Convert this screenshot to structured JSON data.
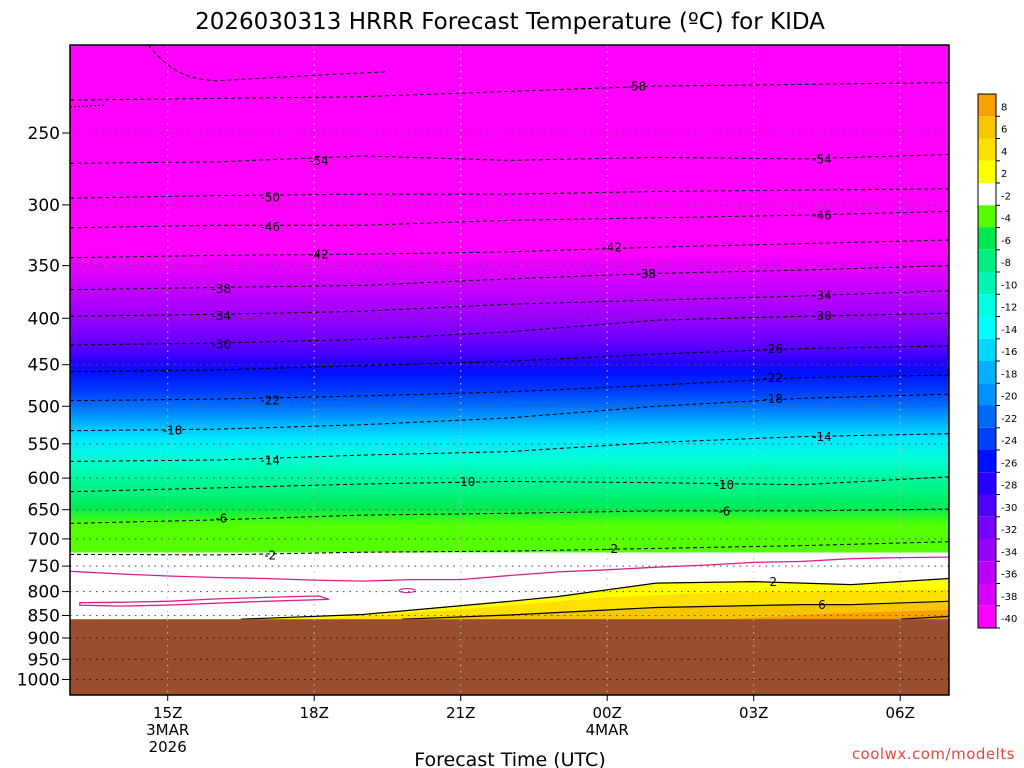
{
  "chart_data": {
    "type": "heatmap",
    "title": "2026030313 HRRR Forecast Temperature (ºC) for KIDA",
    "xlabel": "Forecast Time (UTC)",
    "ylabel": "",
    "x_ticks": [
      {
        "time": "2026-03-03 15Z",
        "lines": [
          "15Z",
          "3MAR",
          "2026"
        ]
      },
      {
        "time": "2026-03-03 18Z",
        "lines": [
          "18Z"
        ]
      },
      {
        "time": "2026-03-03 21Z",
        "lines": [
          "21Z"
        ]
      },
      {
        "time": "2026-03-04 00Z",
        "lines": [
          "00Z",
          "4MAR"
        ]
      },
      {
        "time": "2026-03-04 03Z",
        "lines": [
          "03Z"
        ]
      },
      {
        "time": "2026-03-04 06Z",
        "lines": [
          "06Z"
        ]
      }
    ],
    "x_range_hours_after_13Z": [
      0,
      18
    ],
    "y_scale": "log",
    "y_ticks": [
      250,
      300,
      350,
      400,
      450,
      500,
      550,
      600,
      650,
      700,
      750,
      800,
      850,
      900,
      950,
      1000
    ],
    "ylim": [
      1040,
      200
    ],
    "ground_pressure_hpa": 858,
    "grid": true,
    "colorbar": {
      "placement": "right",
      "labels": [
        "8",
        "6",
        "4",
        "2",
        "-2",
        "-4",
        "-6",
        "-8",
        "-10",
        "-12",
        "-14",
        "-16",
        "-18",
        "-20",
        "-22",
        "-24",
        "-26",
        "-28",
        "-30",
        "-32",
        "-34",
        "-36",
        "-38",
        "-40"
      ],
      "colors": [
        "#f7a000",
        "#f7c600",
        "#ffe000",
        "#ffff00",
        "#ffffff",
        "#55ff00",
        "#00e850",
        "#00f080",
        "#00f5b5",
        "#00ffe0",
        "#00ffff",
        "#00d8ff",
        "#00b0ff",
        "#0090ff",
        "#0068ff",
        "#0040ff",
        "#0010ff",
        "#2800ff",
        "#5000ff",
        "#7800ff",
        "#9800ff",
        "#b800ff",
        "#d800ff",
        "#ff00ff"
      ]
    },
    "contour_labels": [
      {
        "text": "-58",
        "t": 11.6,
        "p": 222
      },
      {
        "text": "-54",
        "t": 5.1,
        "p": 268
      },
      {
        "text": "-54",
        "t": 15.4,
        "p": 267
      },
      {
        "text": "-50",
        "t": 4.1,
        "p": 294
      },
      {
        "text": "-46",
        "t": 4.1,
        "p": 317
      },
      {
        "text": "-46",
        "t": 15.4,
        "p": 308
      },
      {
        "text": "-42",
        "t": 5.1,
        "p": 340
      },
      {
        "text": "-42",
        "t": 11.1,
        "p": 334
      },
      {
        "text": "-38",
        "t": 3.1,
        "p": 371
      },
      {
        "text": "-38",
        "t": 11.8,
        "p": 357
      },
      {
        "text": "-34",
        "t": 3.1,
        "p": 397
      },
      {
        "text": "-34",
        "t": 15.4,
        "p": 377
      },
      {
        "text": "-30",
        "t": 3.1,
        "p": 427
      },
      {
        "text": "-30",
        "t": 15.4,
        "p": 397
      },
      {
        "text": "-26",
        "t": 14.4,
        "p": 432
      },
      {
        "text": "-22",
        "t": 4.1,
        "p": 492
      },
      {
        "text": "-22",
        "t": 14.4,
        "p": 465
      },
      {
        "text": "-18",
        "t": 2.1,
        "p": 531
      },
      {
        "text": "-18",
        "t": 14.4,
        "p": 490
      },
      {
        "text": "-14",
        "t": 4.1,
        "p": 573
      },
      {
        "text": "-14",
        "t": 15.4,
        "p": 540
      },
      {
        "text": "-10",
        "t": 8.1,
        "p": 605
      },
      {
        "text": "-10",
        "t": 13.4,
        "p": 610
      },
      {
        "text": "-6",
        "t": 3.1,
        "p": 664
      },
      {
        "text": "-6",
        "t": 13.4,
        "p": 652
      },
      {
        "text": "-2",
        "t": 4.1,
        "p": 729
      },
      {
        "text": "-2",
        "t": 11.1,
        "p": 717
      },
      {
        "text": "2",
        "t": 14.4,
        "p": 780
      },
      {
        "text": "6",
        "t": 15.4,
        "p": 827
      }
    ],
    "dashed_isotherms": [
      {
        "value": -58,
        "points": [
          [
            0,
            230
          ],
          [
            3,
            229
          ],
          [
            6,
            228
          ],
          [
            9,
            225
          ],
          [
            12,
            222
          ],
          [
            15,
            221
          ],
          [
            18,
            220
          ]
        ]
      },
      {
        "value": -54,
        "points": [
          [
            0,
            270
          ],
          [
            3,
            269
          ],
          [
            6,
            265
          ],
          [
            9,
            268
          ],
          [
            12,
            266
          ],
          [
            15,
            267
          ],
          [
            18,
            264
          ]
        ]
      },
      {
        "value": -50,
        "points": [
          [
            0,
            295
          ],
          [
            3,
            293
          ],
          [
            6,
            292
          ],
          [
            9,
            292
          ],
          [
            12,
            290
          ],
          [
            15,
            289
          ],
          [
            18,
            288
          ]
        ]
      },
      {
        "value": -46,
        "points": [
          [
            0,
            318
          ],
          [
            3,
            316
          ],
          [
            6,
            316
          ],
          [
            9,
            312
          ],
          [
            12,
            310
          ],
          [
            15,
            308
          ],
          [
            18,
            305
          ]
        ]
      },
      {
        "value": -42,
        "points": [
          [
            0,
            343
          ],
          [
            3,
            341
          ],
          [
            6,
            340
          ],
          [
            9,
            338
          ],
          [
            12,
            334
          ],
          [
            15,
            331
          ],
          [
            18,
            328
          ]
        ]
      },
      {
        "value": -38,
        "points": [
          [
            0,
            372
          ],
          [
            3,
            370
          ],
          [
            6,
            368
          ],
          [
            9,
            362
          ],
          [
            12,
            357
          ],
          [
            15,
            354
          ],
          [
            18,
            350
          ]
        ]
      },
      {
        "value": -34,
        "points": [
          [
            0,
            398
          ],
          [
            3,
            396
          ],
          [
            6,
            393
          ],
          [
            9,
            386
          ],
          [
            12,
            382
          ],
          [
            15,
            378
          ],
          [
            18,
            373
          ]
        ]
      },
      {
        "value": -30,
        "points": [
          [
            0,
            428
          ],
          [
            3,
            426
          ],
          [
            6,
            422
          ],
          [
            9,
            414
          ],
          [
            12,
            402
          ],
          [
            15,
            398
          ],
          [
            18,
            395
          ]
        ]
      },
      {
        "value": -26,
        "points": [
          [
            0,
            458
          ],
          [
            3,
            456
          ],
          [
            6,
            451
          ],
          [
            9,
            446
          ],
          [
            12,
            438
          ],
          [
            15,
            432
          ],
          [
            18,
            429
          ]
        ]
      },
      {
        "value": -22,
        "points": [
          [
            0,
            493
          ],
          [
            3,
            491
          ],
          [
            6,
            487
          ],
          [
            9,
            482
          ],
          [
            12,
            474
          ],
          [
            15,
            465
          ],
          [
            18,
            462
          ]
        ]
      },
      {
        "value": -18,
        "points": [
          [
            0,
            532
          ],
          [
            3,
            530
          ],
          [
            6,
            524
          ],
          [
            9,
            515
          ],
          [
            12,
            500
          ],
          [
            15,
            490
          ],
          [
            18,
            485
          ]
        ]
      },
      {
        "value": -14,
        "points": [
          [
            0,
            575
          ],
          [
            3,
            573
          ],
          [
            6,
            566
          ],
          [
            9,
            561
          ],
          [
            12,
            548
          ],
          [
            15,
            540
          ],
          [
            18,
            536
          ]
        ]
      },
      {
        "value": -10,
        "points": [
          [
            0,
            621
          ],
          [
            3,
            615
          ],
          [
            6,
            609
          ],
          [
            9,
            605
          ],
          [
            12,
            607
          ],
          [
            15,
            610
          ],
          [
            18,
            598
          ]
        ]
      },
      {
        "value": -6,
        "points": [
          [
            0,
            673
          ],
          [
            3,
            667
          ],
          [
            6,
            659
          ],
          [
            9,
            656
          ],
          [
            12,
            652
          ],
          [
            15,
            652
          ],
          [
            18,
            649
          ]
        ]
      },
      {
        "value": -2,
        "points": [
          [
            0,
            728
          ],
          [
            3,
            729
          ],
          [
            6,
            724
          ],
          [
            9,
            722
          ],
          [
            12,
            717
          ],
          [
            15,
            712
          ],
          [
            18,
            705
          ]
        ]
      }
    ],
    "solid_isotherms": [
      {
        "value": 2,
        "points": [
          [
            3.5,
            858
          ],
          [
            6,
            848
          ],
          [
            9,
            820
          ],
          [
            10,
            810
          ],
          [
            12,
            783
          ],
          [
            14,
            780
          ],
          [
            16,
            786
          ],
          [
            18,
            774
          ]
        ]
      },
      {
        "value": 6,
        "points": [
          [
            6.8,
            858
          ],
          [
            9,
            849
          ],
          [
            12,
            833
          ],
          [
            15,
            827
          ],
          [
            16,
            827
          ],
          [
            18,
            820
          ]
        ]
      },
      {
        "value": 10,
        "points": [
          [
            17.0,
            858
          ],
          [
            18,
            852
          ]
        ]
      }
    ],
    "zero_isotherm": [
      [
        0,
        760
      ],
      [
        1,
        765
      ],
      [
        2,
        769
      ],
      [
        3,
        772
      ],
      [
        4,
        774
      ],
      [
        5,
        777
      ],
      [
        6,
        779
      ],
      [
        7,
        776
      ],
      [
        8,
        776
      ],
      [
        9,
        768
      ],
      [
        10,
        761
      ],
      [
        11,
        757
      ],
      [
        12,
        752
      ],
      [
        13,
        748
      ],
      [
        14,
        743
      ],
      [
        15,
        741
      ],
      [
        16,
        736
      ],
      [
        17,
        734
      ],
      [
        18,
        733
      ]
    ],
    "zero_isotherm_patches": [
      [
        [
          0.2,
          823
        ],
        [
          1.0,
          822
        ],
        [
          2.0,
          820
        ],
        [
          3.0,
          815
        ],
        [
          4.0,
          812
        ],
        [
          5.1,
          809
        ],
        [
          5.3,
          816
        ],
        [
          4.0,
          820
        ],
        [
          2.0,
          828
        ],
        [
          1.0,
          830
        ],
        [
          0.2,
          828
        ]
      ]
    ]
  },
  "credit": "coolwx.com/modelts"
}
